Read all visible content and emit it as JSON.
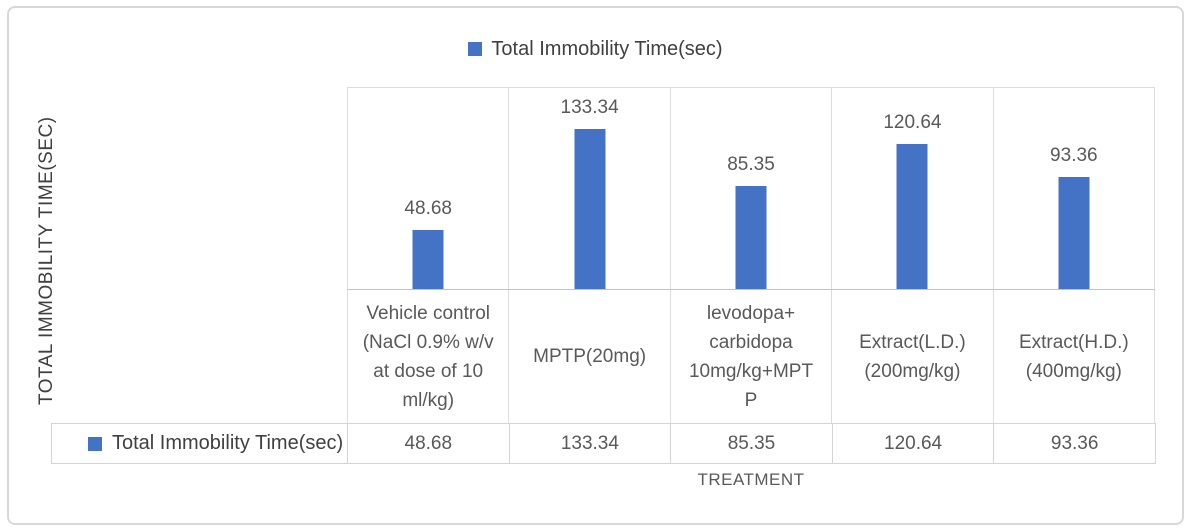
{
  "chart_data": {
    "type": "bar",
    "legend": {
      "label": "Total Immobility Time(sec)",
      "position": "top"
    },
    "categories": [
      "Vehicle control (NaCl 0.9% w/v at dose of 10 ml/kg)",
      "MPTP(20mg)",
      "levodopa+ carbidopa 10mg/kg+MPTP",
      "Extract(L.D.) (200mg/kg)",
      "Extract(H.D.) (400mg/kg)"
    ],
    "category_display_lines": [
      "Vehicle control\n(NaCl 0.9% w/v\nat dose of 10\nml/kg)",
      "MPTP(20mg)",
      "levodopa+\ncarbidopa\n10mg/kg+MPT\nP",
      "Extract(L.D.)\n(200mg/kg)",
      "Extract(H.D.)\n(400mg/kg)"
    ],
    "series": [
      {
        "name": "Total Immobility Time(sec)",
        "values": [
          48.68,
          133.34,
          85.35,
          120.64,
          93.36
        ]
      }
    ],
    "value_labels": [
      "48.68",
      "133.34",
      "85.35",
      "120.64",
      "93.36"
    ],
    "data_table": {
      "shown": true,
      "row_label": "Total Immobility Time(sec)",
      "row_values": [
        "48.68",
        "133.34",
        "85.35",
        "120.64",
        "93.36"
      ]
    },
    "xlabel": "TREATMENT",
    "ylabel": "TOTAL IMMOBILITY TIME(SEC)",
    "ylim": [
      0,
      168
    ],
    "grid": "vertical-column-separators-only",
    "colors": {
      "bar": "#4472C4",
      "gridline": "#DCDCDC",
      "label_text": "#595959",
      "title_text": "#404040"
    }
  }
}
